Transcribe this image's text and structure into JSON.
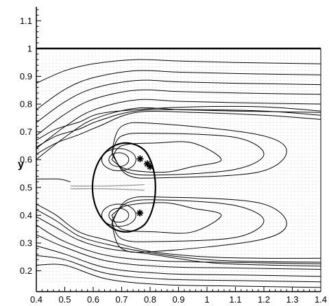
{
  "chart_data": {
    "type": "streamline-plot",
    "xlabel": "",
    "ylabel": "y",
    "xlim": [
      0.4,
      1.4
    ],
    "ylim": [
      0.125,
      1.15
    ],
    "x_ticks": [
      "0.4",
      "0.5",
      "0.6",
      "0.7",
      "0.8",
      "0.9",
      "1",
      "1.1",
      "1.2",
      "1.3",
      "1.4"
    ],
    "y_ticks": [
      "0.2",
      "0.3",
      "0.4",
      "0.5",
      "0.6",
      "0.7",
      "0.8",
      "0.9",
      "1",
      "1.1"
    ],
    "wall_y": 1.0,
    "drop": {
      "center_x": 0.715,
      "center_y": 0.5,
      "radius_x": 0.12,
      "radius_y": 0.16
    },
    "markers": [
      {
        "x": 0.765,
        "y": 0.603
      },
      {
        "x": 0.79,
        "y": 0.585
      },
      {
        "x": 0.8,
        "y": 0.575
      },
      {
        "x": 0.764,
        "y": 0.408
      }
    ],
    "upper_streamlines_y": [
      0.955,
      0.915,
      0.88,
      0.845,
      0.81,
      0.78
    ],
    "lower_streamlines_y": [
      0.235,
      0.215,
      0.19,
      0.17,
      0.15
    ],
    "grid": false,
    "colors": {
      "lines": "#000000",
      "background": "#ffffff",
      "vectors": "#8a8a8a"
    }
  }
}
